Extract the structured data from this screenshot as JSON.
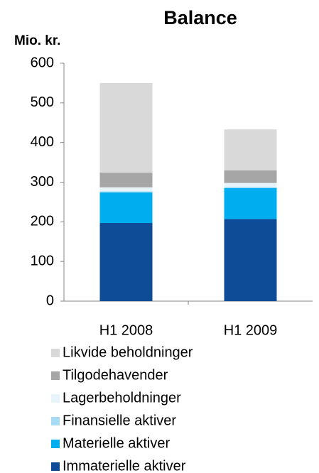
{
  "chart_data": {
    "type": "stacked_bar",
    "title": "Balance",
    "y_label": "Mio. kr.",
    "categories": [
      "H1 2008",
      "H1 2009"
    ],
    "series": [
      {
        "name": "Immaterielle aktiver",
        "color": "#0f4c97",
        "values": [
          197,
          207
        ]
      },
      {
        "name": "Materielle aktiver",
        "color": "#00aeef",
        "values": [
          77,
          78
        ]
      },
      {
        "name": "Finansielle aktiver",
        "color": "#a8dcf5",
        "values": [
          3,
          3
        ]
      },
      {
        "name": "Lagerbeholdninger",
        "color": "#e8f4fc",
        "values": [
          10,
          10
        ]
      },
      {
        "name": "Tilgodehavender",
        "color": "#a6a6a6",
        "values": [
          37,
          32
        ]
      },
      {
        "name": "Likvide beholdninger",
        "color": "#d9d9d9",
        "values": [
          226,
          103
        ]
      }
    ],
    "ylim": [
      0,
      600
    ],
    "yticks": [
      0,
      100,
      200,
      300,
      400,
      500,
      600
    ],
    "grid": false
  }
}
